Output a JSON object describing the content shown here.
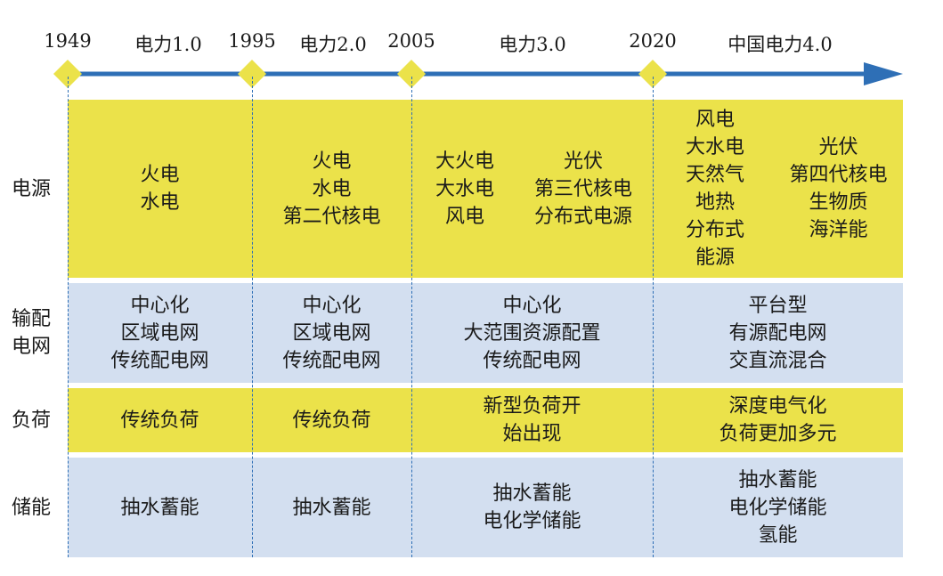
{
  "timeline": {
    "years": [
      "1949",
      "1995",
      "2005",
      "2020"
    ],
    "eras": [
      "电力1.0",
      "电力2.0",
      "电力3.0",
      "中国电力4.0"
    ],
    "colors": {
      "axis": "#2e6fb6",
      "marker": "#ebe24a"
    }
  },
  "rows": {
    "power_source": {
      "label": [
        "电源"
      ],
      "era1": [
        "火电",
        "水电"
      ],
      "era2": [
        "火电",
        "水电",
        "第二代核电"
      ],
      "era3_left": [
        "大火电",
        "大水电",
        "风电"
      ],
      "era3_right": [
        "光伏",
        "第三代核电",
        "分布式电源"
      ],
      "era4_left": [
        "风电",
        "大水电",
        "天然气",
        "地热",
        "分布式",
        "能源"
      ],
      "era4_right": [
        "光伏",
        "第四代核电",
        "生物质",
        "海洋能"
      ]
    },
    "grid": {
      "label": [
        "输配",
        "电网"
      ],
      "era1": [
        "中心化",
        "区域电网",
        "传统配电网"
      ],
      "era2": [
        "中心化",
        "区域电网",
        "传统配电网"
      ],
      "era3": [
        "中心化",
        "大范围资源配置",
        "传统配电网"
      ],
      "era4": [
        "平台型",
        "有源配电网",
        "交直流混合"
      ]
    },
    "load": {
      "label": [
        "负荷"
      ],
      "era1": [
        "传统负荷"
      ],
      "era2": [
        "传统负荷"
      ],
      "era3": [
        "新型负荷开",
        "始出现"
      ],
      "era4": [
        "深度电气化",
        "负荷更加多元"
      ]
    },
    "storage": {
      "label": [
        "储能"
      ],
      "era1": [
        "抽水蓄能"
      ],
      "era2": [
        "抽水蓄能"
      ],
      "era3": [
        "抽水蓄能",
        "电化学储能"
      ],
      "era4": [
        "抽水蓄能",
        "电化学储能",
        "氢能"
      ]
    }
  }
}
